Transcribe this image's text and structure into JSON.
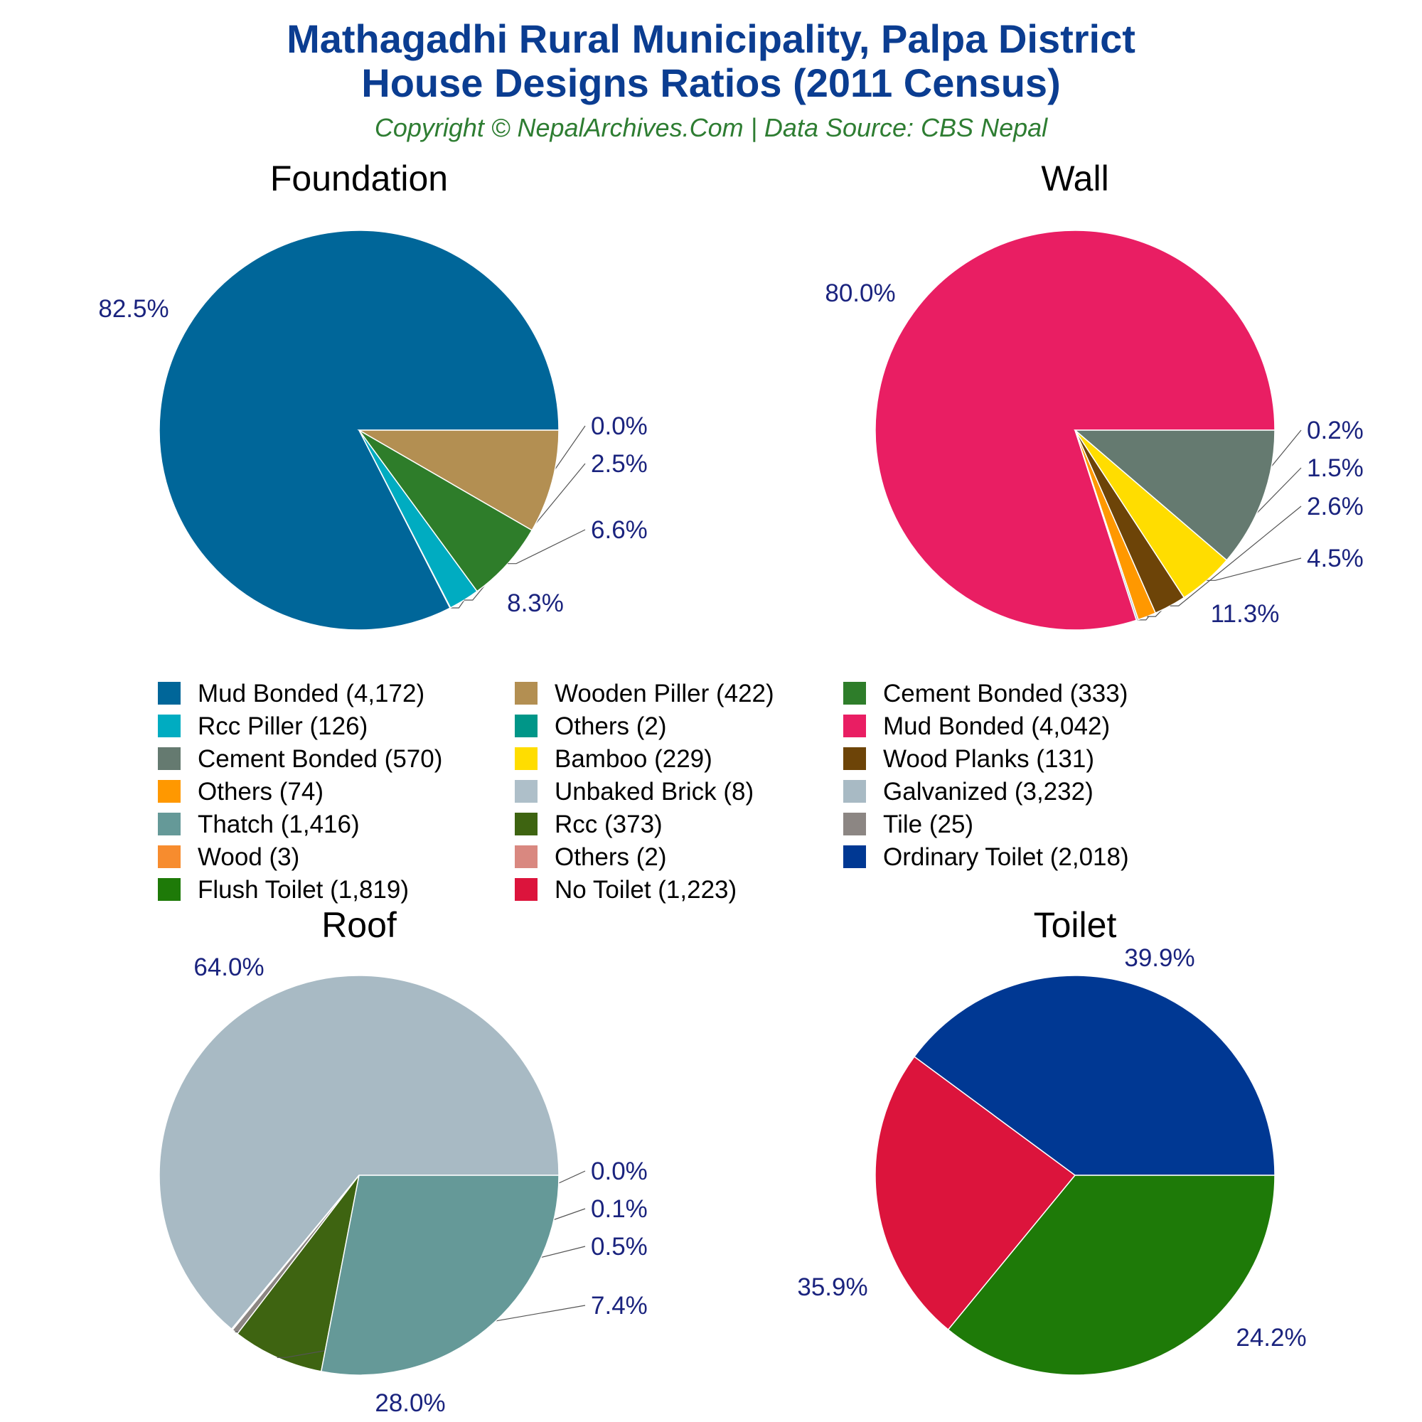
{
  "title_line1": "Mathagadhi Rural Municipality, Palpa District",
  "title_line2": "House Designs Ratios (2011 Census)",
  "subtitle": "Copyright © NepalArchives.Com | Data Source: CBS Nepal",
  "chart_data": [
    {
      "type": "pie",
      "title": "Foundation",
      "slices": [
        {
          "label": "Mud Bonded",
          "value": 4172,
          "percent": "82.5%",
          "color": "#006699"
        },
        {
          "label": "Others",
          "value": 2,
          "percent": "0.0%",
          "color": "#009688"
        },
        {
          "label": "Rcc Piller",
          "value": 126,
          "percent": "2.5%",
          "color": "#00acc1"
        },
        {
          "label": "Cement Bonded",
          "value": 333,
          "percent": "6.6%",
          "color": "#2e7d2a"
        },
        {
          "label": "Wooden Piller",
          "value": 422,
          "percent": "8.3%",
          "color": "#b38f52"
        }
      ]
    },
    {
      "type": "pie",
      "title": "Wall",
      "slices": [
        {
          "label": "Mud Bonded",
          "value": 4042,
          "percent": "80.0%",
          "color": "#e91e63"
        },
        {
          "label": "Unbaked Brick",
          "value": 8,
          "percent": "0.2%",
          "color": "#aebfc9"
        },
        {
          "label": "Others",
          "value": 74,
          "percent": "1.5%",
          "color": "#ff9800"
        },
        {
          "label": "Wood Planks",
          "value": 131,
          "percent": "2.6%",
          "color": "#6d4408"
        },
        {
          "label": "Bamboo",
          "value": 229,
          "percent": "4.5%",
          "color": "#ffdd00"
        },
        {
          "label": "Cement Bonded",
          "value": 570,
          "percent": "11.3%",
          "color": "#657a70"
        }
      ]
    },
    {
      "type": "pie",
      "title": "Roof",
      "slices": [
        {
          "label": "Galvanized",
          "value": 3232,
          "percent": "64.0%",
          "color": "#a8bac4"
        },
        {
          "label": "Others",
          "value": 2,
          "percent": "0.0%",
          "color": "#d98880"
        },
        {
          "label": "Wood",
          "value": 3,
          "percent": "0.1%",
          "color": "#f78c2e"
        },
        {
          "label": "Tile",
          "value": 25,
          "percent": "0.5%",
          "color": "#8c8683"
        },
        {
          "label": "Rcc",
          "value": 373,
          "percent": "7.4%",
          "color": "#3e6411"
        },
        {
          "label": "Thatch",
          "value": 1416,
          "percent": "28.0%",
          "color": "#659998"
        }
      ]
    },
    {
      "type": "pie",
      "title": "Toilet",
      "slices": [
        {
          "label": "Ordinary Toilet",
          "value": 2018,
          "percent": "39.9%",
          "color": "#003893"
        },
        {
          "label": "No Toilet",
          "value": 1223,
          "percent": "24.2%",
          "color": "#dc143c"
        },
        {
          "label": "Flush Toilet",
          "value": 1819,
          "percent": "35.9%",
          "color": "#1e7a08"
        }
      ]
    }
  ],
  "legend": [
    {
      "text": "Mud Bonded (4,172)",
      "color": "#006699"
    },
    {
      "text": "Wooden Piller (422)",
      "color": "#b38f52"
    },
    {
      "text": "Cement Bonded (333)",
      "color": "#2e7d2a"
    },
    {
      "text": "Rcc Piller (126)",
      "color": "#00acc1"
    },
    {
      "text": "Others (2)",
      "color": "#009688"
    },
    {
      "text": "Mud Bonded (4,042)",
      "color": "#e91e63"
    },
    {
      "text": "Cement Bonded (570)",
      "color": "#657a70"
    },
    {
      "text": "Bamboo (229)",
      "color": "#ffdd00"
    },
    {
      "text": "Wood Planks (131)",
      "color": "#6d4408"
    },
    {
      "text": "Others (74)",
      "color": "#ff9800"
    },
    {
      "text": "Unbaked Brick (8)",
      "color": "#aebfc9"
    },
    {
      "text": "Galvanized (3,232)",
      "color": "#a8bac4"
    },
    {
      "text": "Thatch (1,416)",
      "color": "#659998"
    },
    {
      "text": "Rcc (373)",
      "color": "#3e6411"
    },
    {
      "text": "Tile (25)",
      "color": "#8c8683"
    },
    {
      "text": "Wood (3)",
      "color": "#f78c2e"
    },
    {
      "text": "Others (2)",
      "color": "#d98880"
    },
    {
      "text": "Ordinary Toilet (2,018)",
      "color": "#003893"
    },
    {
      "text": "Flush Toilet (1,819)",
      "color": "#1e7a08"
    },
    {
      "text": "No Toilet (1,223)",
      "color": "#dc143c"
    }
  ]
}
